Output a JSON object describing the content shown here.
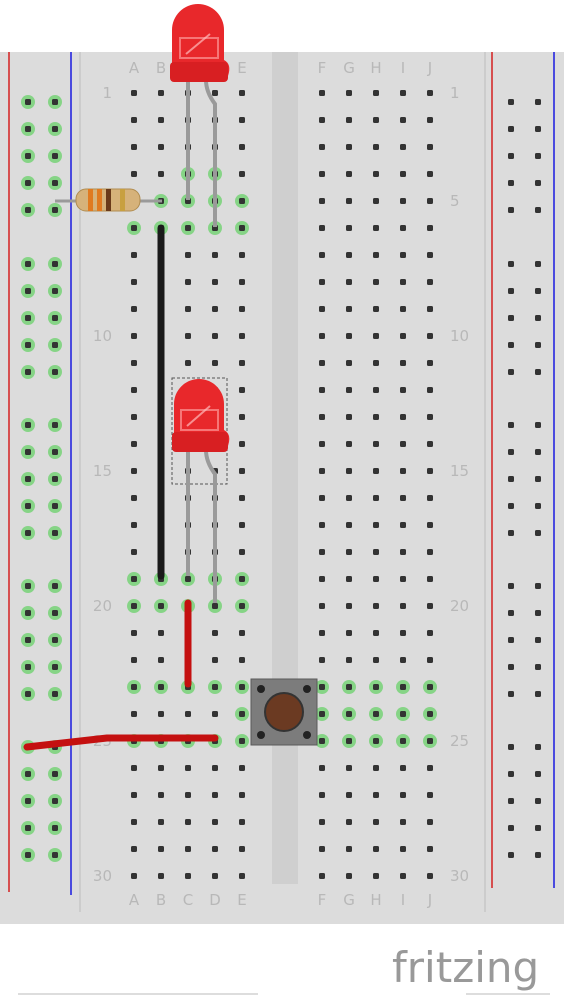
{
  "board": {
    "columns_left": [
      "A",
      "B",
      "C",
      "D",
      "E"
    ],
    "columns_right": [
      "F",
      "G",
      "H",
      "I",
      "J"
    ],
    "row_labels": [
      "1",
      "5",
      "10",
      "15",
      "20",
      "25",
      "30"
    ],
    "row_count": 30
  },
  "brand": {
    "name": "fritzing"
  },
  "parts": {
    "led_top": {
      "name": "red-led",
      "row_anode": 4,
      "row_cathode": 5,
      "color": "#e8282b"
    },
    "led_mid": {
      "name": "red-led",
      "row_anode": 16,
      "row_cathode": 20,
      "color": "#e8282b"
    },
    "resistor": {
      "name": "resistor",
      "row": 5
    },
    "pushbutton": {
      "name": "pushbutton",
      "rows": [
        24,
        25
      ]
    },
    "wire_black": {
      "color": "#1a1a1a",
      "from": "B6",
      "to": "B19"
    },
    "wire_red_short": {
      "color": "#c41010",
      "from": "C20",
      "to": "C23"
    },
    "wire_red_long": {
      "color": "#c41010",
      "from": "rail-25",
      "to": "D25"
    }
  },
  "colors": {
    "board": "#dcdcdc",
    "hole": "#333333",
    "connected": "#86d486",
    "rail_red": "#d42020",
    "rail_blue": "#1a1ae0",
    "label": "#b8b8b8"
  }
}
